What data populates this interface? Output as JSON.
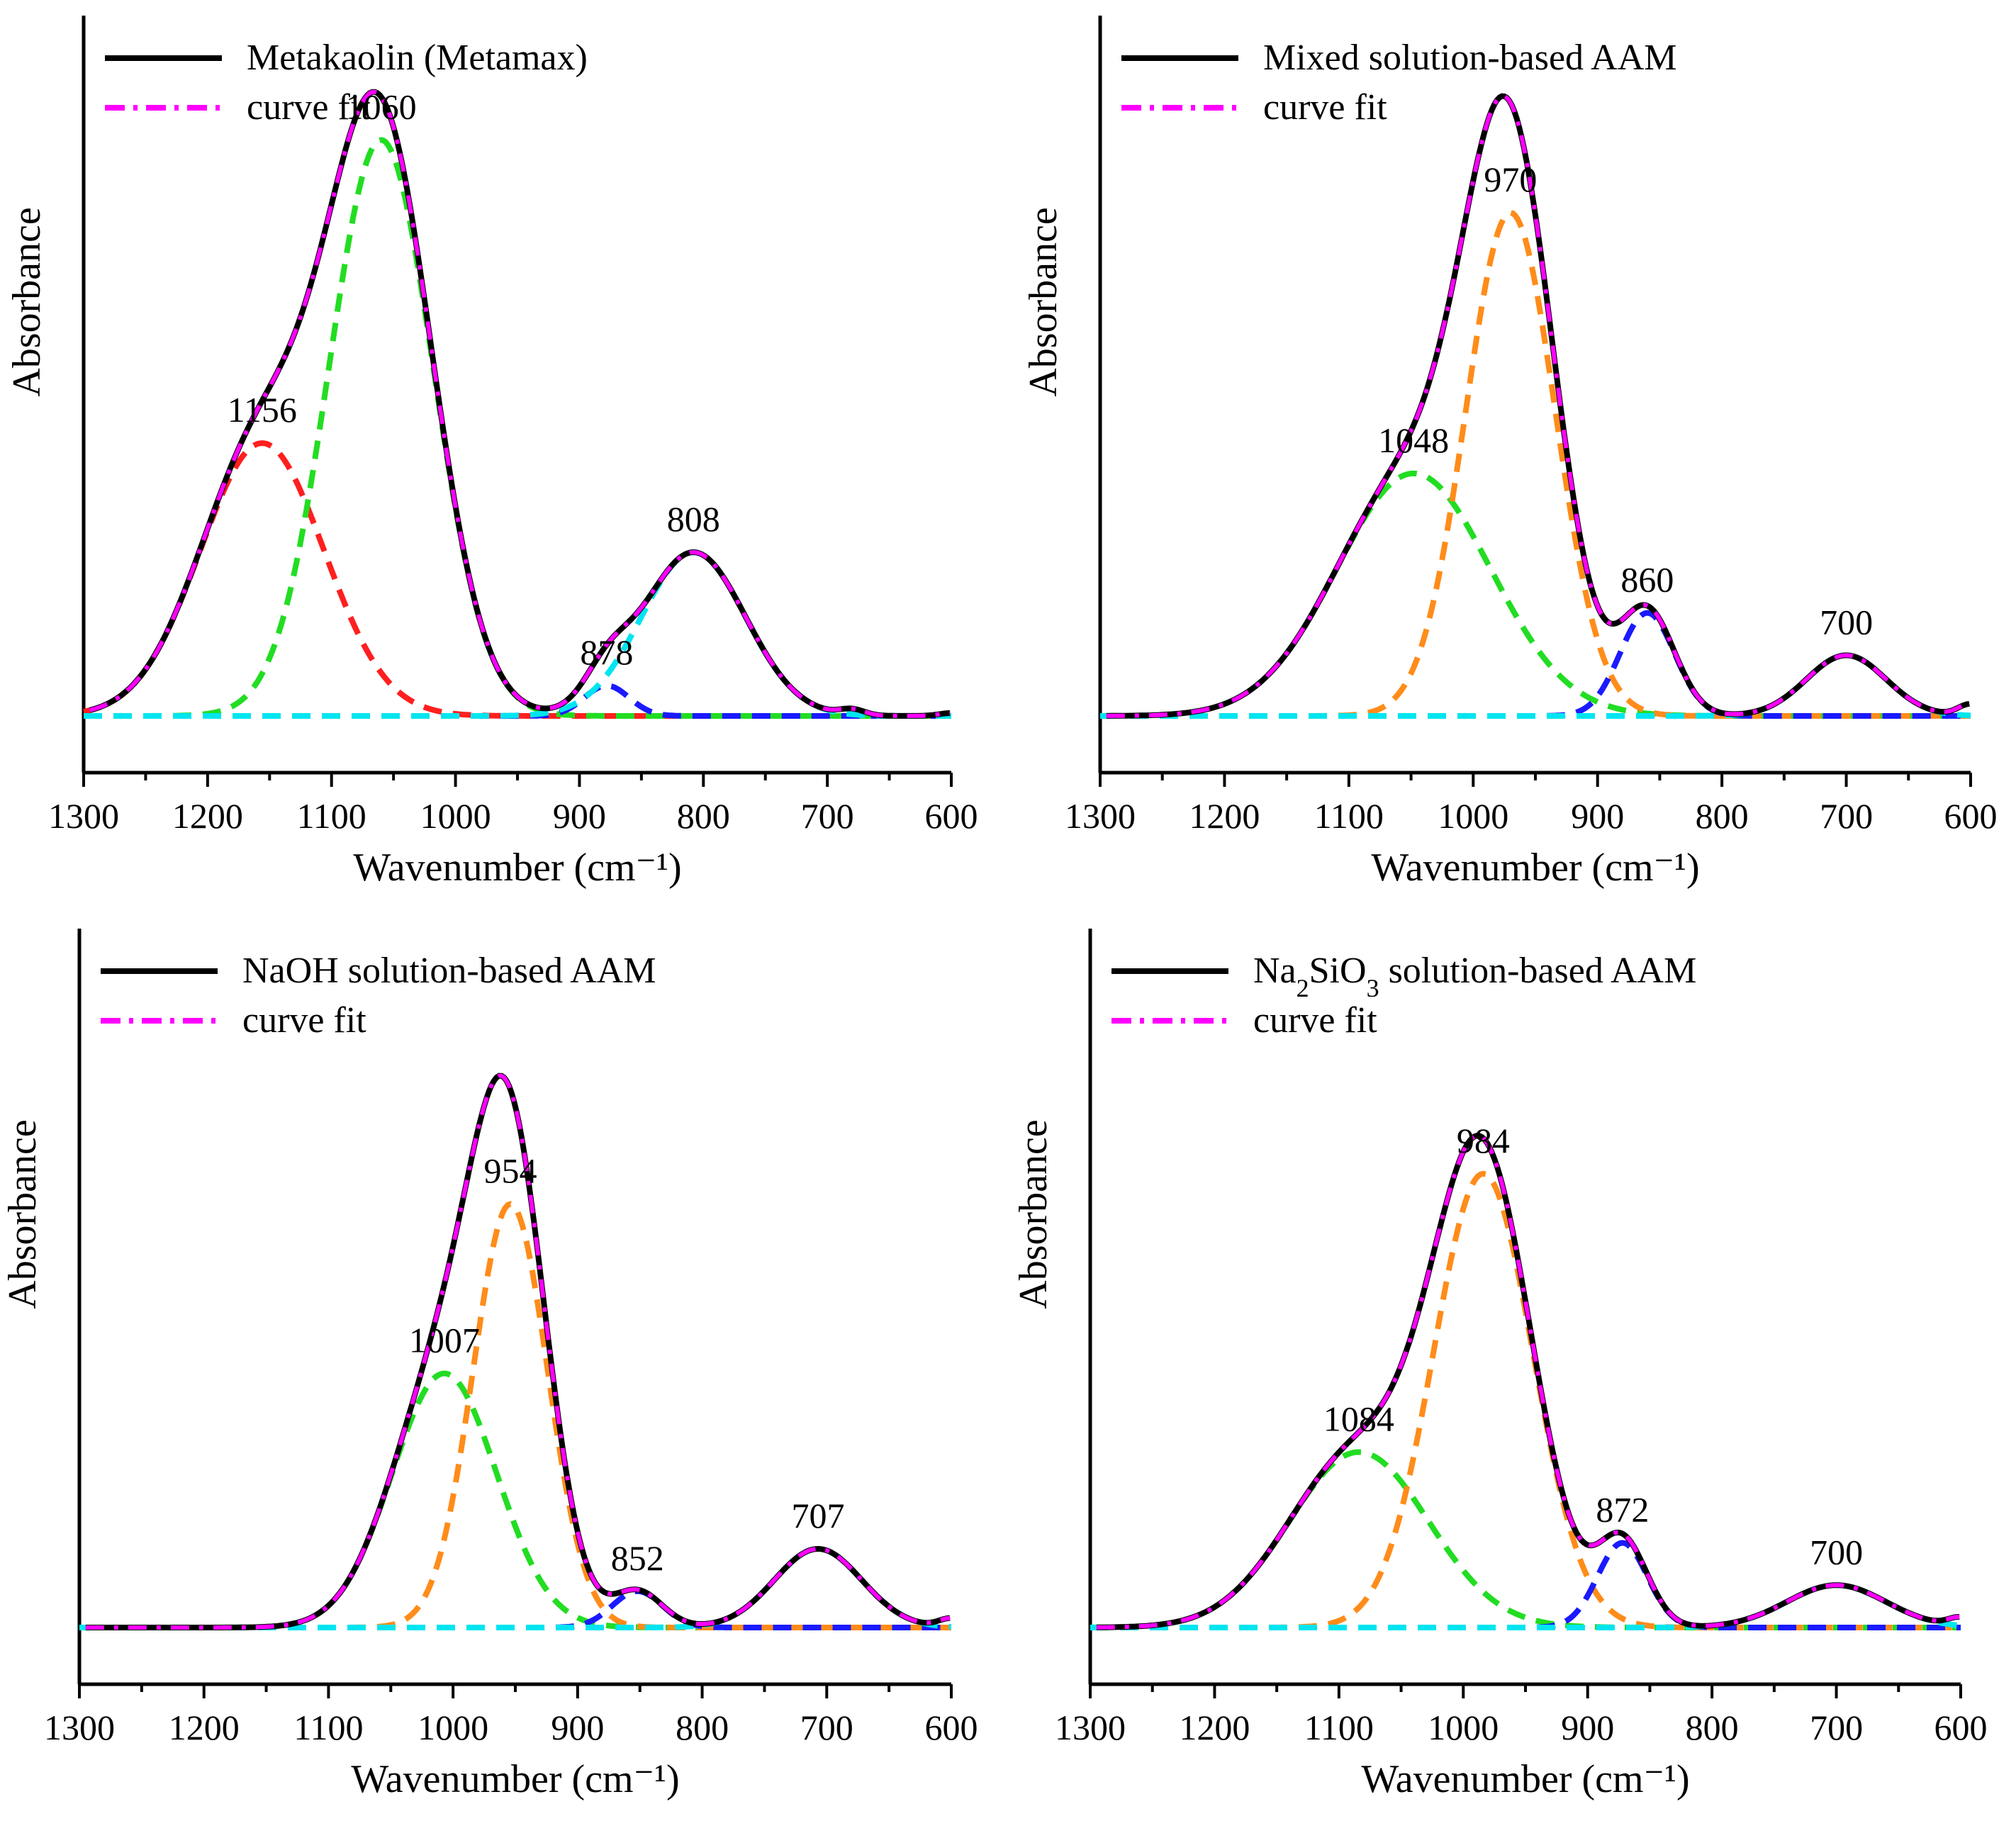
{
  "colors": {
    "data": "#000000",
    "fit": "#ff00ff",
    "red": "#ff1f1f",
    "green": "#22dd22",
    "blue": "#1a1aff",
    "cyan": "#00e5f0",
    "orange": "#ff8c1a"
  },
  "chart_data": [
    {
      "id": "metakaolin",
      "type": "line",
      "legend": {
        "data_label": "Metakaolin (Metamax)",
        "fit_label": "curve fit",
        "sub": ""
      },
      "xlabel": "Wavenumber (cm⁻¹)",
      "ylabel": "Absorbance",
      "xlim": [
        1300,
        600
      ],
      "ylim": [
        0,
        1.12
      ],
      "xticks": [
        1300,
        1200,
        1100,
        1000,
        900,
        800,
        700,
        600
      ],
      "baseline": 0.0,
      "peaks": [
        {
          "center": 1156,
          "amp": 0.45,
          "sigma": 50,
          "color": "red",
          "label": "1156"
        },
        {
          "center": 1060,
          "amp": 0.95,
          "sigma": 42,
          "color": "green",
          "label": "1060"
        },
        {
          "center": 878,
          "amp": 0.05,
          "sigma": 18,
          "color": "blue",
          "label": "878"
        },
        {
          "center": 808,
          "amp": 0.27,
          "sigma": 42,
          "color": "cyan",
          "label": "808"
        }
      ],
      "tail": [
        {
          "x": 680,
          "y": 0.02
        },
        {
          "x": 600,
          "y": 0.01
        }
      ]
    },
    {
      "id": "mixed",
      "type": "line",
      "legend": {
        "data_label": "Mixed solution-based AAM",
        "fit_label": "curve fit",
        "sub": ""
      },
      "xlabel": "Wavenumber (cm⁻¹)",
      "ylabel": "Absorbance",
      "xlim": [
        1300,
        600
      ],
      "ylim": [
        0,
        1.12
      ],
      "xticks": [
        1300,
        1200,
        1100,
        1000,
        900,
        800,
        700,
        600
      ],
      "baseline": 0.0,
      "peaks": [
        {
          "center": 1048,
          "amp": 0.4,
          "sigma": 62,
          "color": "green",
          "label": "1048"
        },
        {
          "center": 970,
          "amp": 0.83,
          "sigma": 36,
          "color": "orange",
          "label": "970"
        },
        {
          "center": 860,
          "amp": 0.17,
          "sigma": 22,
          "color": "blue",
          "label": "860"
        },
        {
          "center": 700,
          "amp": 0.1,
          "sigma": 32,
          "color": "cyan",
          "label": "700"
        }
      ],
      "tail": [
        {
          "x": 600,
          "y": 0.04
        }
      ]
    },
    {
      "id": "naoh",
      "type": "line",
      "legend": {
        "data_label": "NaOH solution-based AAM",
        "fit_label": "curve fit",
        "sub": ""
      },
      "xlabel": "Wavenumber (cm⁻¹)",
      "ylabel": "Absorbance",
      "xlim": [
        1300,
        600
      ],
      "ylim": [
        0,
        1.12
      ],
      "xticks": [
        1300,
        1200,
        1100,
        1000,
        900,
        800,
        700,
        600
      ],
      "baseline": 0.0,
      "peaks": [
        {
          "center": 1007,
          "amp": 0.42,
          "sigma": 42,
          "color": "green",
          "label": "1007"
        },
        {
          "center": 954,
          "amp": 0.7,
          "sigma": 30,
          "color": "orange",
          "label": "954"
        },
        {
          "center": 852,
          "amp": 0.06,
          "sigma": 20,
          "color": "blue",
          "label": "852"
        },
        {
          "center": 707,
          "amp": 0.13,
          "sigma": 35,
          "color": "cyan",
          "label": "707"
        }
      ],
      "tail": [
        {
          "x": 600,
          "y": 0.03
        }
      ]
    },
    {
      "id": "na2sio3",
      "type": "line",
      "legend": {
        "data_label": "solution-based AAM",
        "fit_label": "curve fit",
        "sub": "Na2SiO3"
      },
      "xlabel": "Wavenumber (cm⁻¹)",
      "ylabel": "Absorbance",
      "xlim": [
        1300,
        600
      ],
      "ylim": [
        0,
        1.12
      ],
      "xticks": [
        1300,
        1200,
        1100,
        1000,
        900,
        800,
        700,
        600
      ],
      "baseline": 0.0,
      "peaks": [
        {
          "center": 1084,
          "amp": 0.29,
          "sigma": 56,
          "color": "green",
          "label": "1084"
        },
        {
          "center": 984,
          "amp": 0.75,
          "sigma": 40,
          "color": "orange",
          "label": "984"
        },
        {
          "center": 872,
          "amp": 0.14,
          "sigma": 20,
          "color": "blue",
          "label": "872"
        },
        {
          "center": 700,
          "amp": 0.07,
          "sigma": 40,
          "color": "cyan",
          "label": "700"
        }
      ],
      "tail": [
        {
          "x": 600,
          "y": 0.03
        }
      ]
    }
  ]
}
